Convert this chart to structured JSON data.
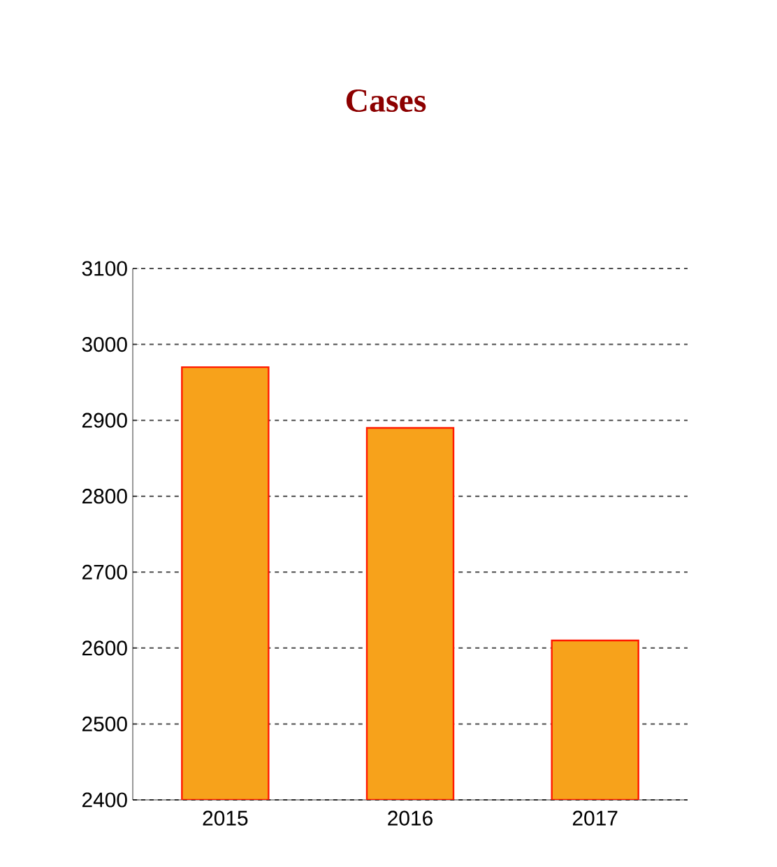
{
  "chart_data": {
    "type": "bar",
    "title": "Cases",
    "categories": [
      "2015",
      "2016",
      "2017"
    ],
    "values": [
      2970,
      2890,
      2610
    ],
    "color": "#f7a21b",
    "ylim": [
      2400,
      3100
    ],
    "yticks": [
      2400,
      2500,
      2600,
      2700,
      2800,
      2900,
      3000,
      3100
    ],
    "grid": "y"
  }
}
